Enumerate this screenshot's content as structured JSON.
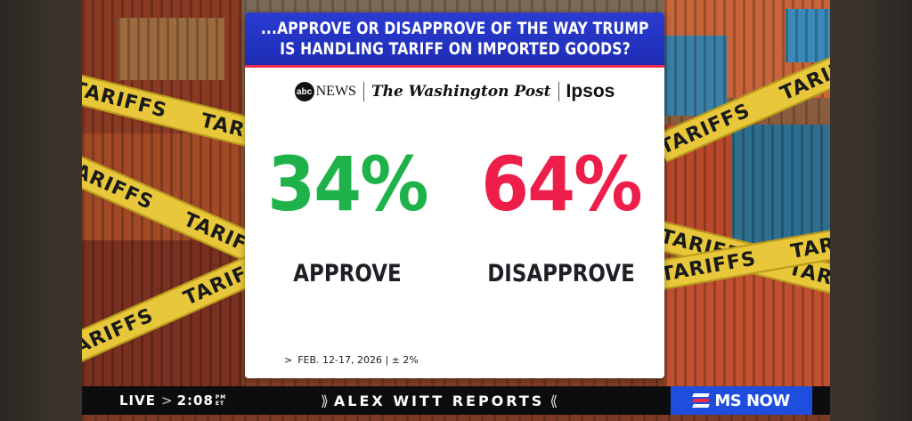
{
  "graphic": {
    "question_line1": "...APPROVE OR DISAPPROVE OF THE WAY TRUMP",
    "question_line2": "IS HANDLING TARIFF ON IMPORTED GOODS?",
    "sources": {
      "abc_mark": "abc",
      "abc_news": "NEWS",
      "washington_post": "The Washington Post",
      "ipsos": "Ipsos"
    },
    "approve": {
      "percent": "34%",
      "label": "APPROVE",
      "color": "#1fb24a"
    },
    "disapprove": {
      "percent": "64%",
      "label": "DISAPPROVE",
      "color": "#ee1e4b"
    },
    "footnote": "FEB. 12-17, 2026 | ± 2%",
    "footnote_chevron": ">"
  },
  "background": {
    "tape_text": "TARIFFS",
    "header_color": "#1f2db5",
    "accent_color": "#ee2b4a",
    "tape_color": "#e8c83a"
  },
  "lower_bar": {
    "live": "LIVE",
    "live_sep": ">",
    "time": "2:08",
    "tz_top": "PM",
    "tz_bottom": "ET",
    "show_open": "⟫",
    "show_title": "ALEX WITT REPORTS",
    "show_close": "⟪",
    "network": "MS NOW",
    "network_color": "#1f4dde"
  }
}
